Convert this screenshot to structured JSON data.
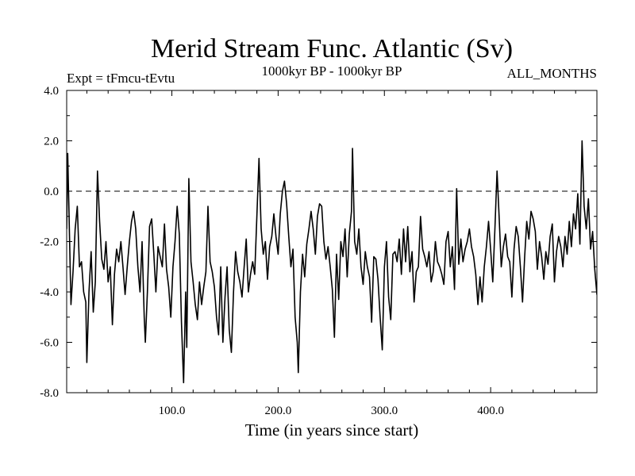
{
  "chart_data": {
    "type": "line",
    "title": "Merid Stream Func. Atlantic (Sv)",
    "subtitle_left": "Expt = tFmcu-tEvtu",
    "subtitle_center": "1000kyr BP - 1000kyr BP",
    "subtitle_right": "ALL_MONTHS",
    "xlabel": "Time (in years since start)",
    "ylabel": "",
    "xlim": [
      1,
      500
    ],
    "ylim": [
      -8.0,
      4.0
    ],
    "x_ticks": [
      100.0,
      200.0,
      300.0,
      400.0
    ],
    "x_tick_labels": [
      "100.0",
      "200.0",
      "300.0",
      "400.0"
    ],
    "y_ticks": [
      4.0,
      2.0,
      0.0,
      -2.0,
      -4.0,
      -6.0,
      -8.0
    ],
    "y_tick_labels": [
      "4.0",
      "2.0",
      "0.0",
      "-2.0",
      "-4.0",
      "-6.0",
      "-8.0"
    ],
    "reference_line": 0.0,
    "series": [
      {
        "name": "Atlantic MSF anomaly",
        "color": "#000000",
        "key_points": [
          [
            1,
            -1.5
          ],
          [
            2,
            1.5
          ],
          [
            3,
            -0.5
          ],
          [
            5,
            -4.5
          ],
          [
            7,
            -3.2
          ],
          [
            9,
            -1.5
          ],
          [
            11,
            -0.6
          ],
          [
            13,
            -3.0
          ],
          [
            15,
            -2.8
          ],
          [
            17,
            -4.0
          ],
          [
            19,
            -4.4
          ],
          [
            20,
            -6.8
          ],
          [
            22,
            -4.0
          ],
          [
            24,
            -2.4
          ],
          [
            26,
            -4.8
          ],
          [
            28,
            -3.6
          ],
          [
            30,
            0.8
          ],
          [
            32,
            -1.2
          ],
          [
            34,
            -2.7
          ],
          [
            36,
            -3.1
          ],
          [
            38,
            -2.0
          ],
          [
            40,
            -3.6
          ],
          [
            42,
            -3.0
          ],
          [
            44,
            -5.3
          ],
          [
            46,
            -3.3
          ],
          [
            48,
            -2.3
          ],
          [
            50,
            -2.8
          ],
          [
            52,
            -2.0
          ],
          [
            54,
            -3.0
          ],
          [
            56,
            -4.1
          ],
          [
            58,
            -3.0
          ],
          [
            60,
            -2.0
          ],
          [
            62,
            -1.2
          ],
          [
            64,
            -0.8
          ],
          [
            66,
            -1.5
          ],
          [
            68,
            -3.0
          ],
          [
            70,
            -4.0
          ],
          [
            72,
            -2.0
          ],
          [
            74,
            -5.0
          ],
          [
            75,
            -6.0
          ],
          [
            77,
            -4.0
          ],
          [
            79,
            -1.4
          ],
          [
            81,
            -1.1
          ],
          [
            83,
            -2.5
          ],
          [
            85,
            -4.0
          ],
          [
            87,
            -2.2
          ],
          [
            89,
            -2.6
          ],
          [
            91,
            -3.0
          ],
          [
            93,
            -1.3
          ],
          [
            95,
            -3.1
          ],
          [
            97,
            -3.8
          ],
          [
            99,
            -5.0
          ],
          [
            101,
            -3.0
          ],
          [
            103,
            -2.0
          ],
          [
            105,
            -0.6
          ],
          [
            107,
            -1.7
          ],
          [
            109,
            -5.2
          ],
          [
            111,
            -7.6
          ],
          [
            113,
            -4.0
          ],
          [
            114,
            -6.2
          ],
          [
            116,
            0.5
          ],
          [
            118,
            -2.8
          ],
          [
            120,
            -3.6
          ],
          [
            122,
            -4.5
          ],
          [
            124,
            -5.1
          ],
          [
            126,
            -3.6
          ],
          [
            128,
            -4.5
          ],
          [
            130,
            -3.8
          ],
          [
            132,
            -3.2
          ],
          [
            134,
            -0.6
          ],
          [
            136,
            -2.8
          ],
          [
            138,
            -3.2
          ],
          [
            140,
            -3.8
          ],
          [
            142,
            -5.0
          ],
          [
            144,
            -5.7
          ],
          [
            146,
            -3.0
          ],
          [
            148,
            -6.0
          ],
          [
            150,
            -4.2
          ],
          [
            152,
            -3.0
          ],
          [
            154,
            -5.5
          ],
          [
            156,
            -6.4
          ],
          [
            158,
            -4.0
          ],
          [
            160,
            -2.4
          ],
          [
            162,
            -3.2
          ],
          [
            164,
            -3.6
          ],
          [
            166,
            -4.2
          ],
          [
            168,
            -3.0
          ],
          [
            170,
            -1.9
          ],
          [
            172,
            -4.0
          ],
          [
            174,
            -3.3
          ],
          [
            176,
            -2.8
          ],
          [
            178,
            -3.3
          ],
          [
            180,
            -1.0
          ],
          [
            182,
            1.3
          ],
          [
            184,
            -1.5
          ],
          [
            186,
            -2.5
          ],
          [
            188,
            -2.0
          ],
          [
            190,
            -3.5
          ],
          [
            192,
            -2.2
          ],
          [
            194,
            -1.8
          ],
          [
            196,
            -0.9
          ],
          [
            198,
            -1.8
          ],
          [
            200,
            -2.5
          ],
          [
            202,
            -0.9
          ],
          [
            204,
            0.0
          ],
          [
            206,
            0.4
          ],
          [
            208,
            -0.5
          ],
          [
            210,
            -1.8
          ],
          [
            212,
            -3.0
          ],
          [
            214,
            -2.3
          ],
          [
            216,
            -5.0
          ],
          [
            218,
            -6.0
          ],
          [
            219,
            -7.2
          ],
          [
            221,
            -4.0
          ],
          [
            223,
            -2.5
          ],
          [
            225,
            -3.4
          ],
          [
            227,
            -2.1
          ],
          [
            229,
            -1.5
          ],
          [
            231,
            -0.8
          ],
          [
            233,
            -1.5
          ],
          [
            235,
            -2.5
          ],
          [
            237,
            -1.0
          ],
          [
            239,
            -0.5
          ],
          [
            241,
            -0.6
          ],
          [
            243,
            -2.0
          ],
          [
            245,
            -2.7
          ],
          [
            247,
            -2.2
          ],
          [
            249,
            -3.0
          ],
          [
            251,
            -3.9
          ],
          [
            253,
            -5.8
          ],
          [
            255,
            -2.5
          ],
          [
            257,
            -4.3
          ],
          [
            259,
            -2.0
          ],
          [
            261,
            -2.6
          ],
          [
            263,
            -1.5
          ],
          [
            265,
            -3.4
          ],
          [
            267,
            -1.7
          ],
          [
            269,
            -0.8
          ],
          [
            270,
            1.7
          ],
          [
            272,
            -2.0
          ],
          [
            274,
            -2.5
          ],
          [
            276,
            -1.5
          ],
          [
            278,
            -3.0
          ],
          [
            280,
            -3.7
          ],
          [
            282,
            -2.4
          ],
          [
            284,
            -3.0
          ],
          [
            286,
            -3.4
          ],
          [
            288,
            -5.2
          ],
          [
            290,
            -2.6
          ],
          [
            292,
            -2.7
          ],
          [
            294,
            -3.5
          ],
          [
            296,
            -5.0
          ],
          [
            298,
            -6.3
          ],
          [
            300,
            -3.0
          ],
          [
            302,
            -2.0
          ],
          [
            304,
            -4.2
          ],
          [
            306,
            -5.1
          ],
          [
            308,
            -2.5
          ],
          [
            310,
            -2.4
          ],
          [
            312,
            -2.8
          ],
          [
            314,
            -1.9
          ],
          [
            316,
            -3.3
          ],
          [
            318,
            -1.5
          ],
          [
            320,
            -2.8
          ],
          [
            322,
            -1.4
          ],
          [
            324,
            -3.2
          ],
          [
            326,
            -2.4
          ],
          [
            328,
            -4.4
          ],
          [
            330,
            -3.2
          ],
          [
            332,
            -3.0
          ],
          [
            334,
            -1.0
          ],
          [
            336,
            -2.3
          ],
          [
            338,
            -2.6
          ],
          [
            340,
            -3.0
          ],
          [
            342,
            -2.4
          ],
          [
            344,
            -3.6
          ],
          [
            346,
            -3.2
          ],
          [
            348,
            -2.0
          ],
          [
            350,
            -2.8
          ],
          [
            352,
            -3.0
          ],
          [
            354,
            -3.3
          ],
          [
            356,
            -3.7
          ],
          [
            358,
            -2.0
          ],
          [
            360,
            -1.6
          ],
          [
            362,
            -3.0
          ],
          [
            364,
            -2.2
          ],
          [
            366,
            -3.9
          ],
          [
            368,
            0.1
          ],
          [
            370,
            -2.9
          ],
          [
            372,
            -1.9
          ],
          [
            374,
            -2.8
          ],
          [
            376,
            -2.3
          ],
          [
            378,
            -2.0
          ],
          [
            380,
            -1.5
          ],
          [
            382,
            -2.2
          ],
          [
            384,
            -2.6
          ],
          [
            386,
            -3.3
          ],
          [
            388,
            -4.5
          ],
          [
            390,
            -3.4
          ],
          [
            392,
            -4.4
          ],
          [
            394,
            -3.0
          ],
          [
            396,
            -2.2
          ],
          [
            398,
            -1.2
          ],
          [
            400,
            -2.3
          ],
          [
            402,
            -3.6
          ],
          [
            404,
            -1.5
          ],
          [
            406,
            0.8
          ],
          [
            408,
            -1.0
          ],
          [
            410,
            -3.0
          ],
          [
            412,
            -2.2
          ],
          [
            414,
            -1.7
          ],
          [
            416,
            -2.6
          ],
          [
            418,
            -2.8
          ],
          [
            420,
            -4.2
          ],
          [
            422,
            -2.3
          ],
          [
            424,
            -1.4
          ],
          [
            426,
            -1.8
          ],
          [
            428,
            -3.0
          ],
          [
            430,
            -4.4
          ],
          [
            432,
            -2.6
          ],
          [
            434,
            -1.2
          ],
          [
            436,
            -1.9
          ],
          [
            438,
            -0.8
          ],
          [
            440,
            -1.1
          ],
          [
            442,
            -1.6
          ],
          [
            444,
            -3.1
          ],
          [
            446,
            -2.0
          ],
          [
            448,
            -2.6
          ],
          [
            450,
            -3.5
          ],
          [
            452,
            -2.4
          ],
          [
            454,
            -2.9
          ],
          [
            456,
            -1.8
          ],
          [
            458,
            -1.3
          ],
          [
            460,
            -3.6
          ],
          [
            462,
            -2.4
          ],
          [
            464,
            -1.8
          ],
          [
            466,
            -2.2
          ],
          [
            468,
            -3.0
          ],
          [
            470,
            -1.8
          ],
          [
            472,
            -2.5
          ],
          [
            474,
            -1.2
          ],
          [
            476,
            -2.2
          ],
          [
            478,
            -0.9
          ],
          [
            480,
            -1.5
          ],
          [
            482,
            -0.1
          ],
          [
            484,
            -2.1
          ],
          [
            486,
            2.0
          ],
          [
            488,
            -0.6
          ],
          [
            490,
            -1.5
          ],
          [
            492,
            -0.3
          ],
          [
            494,
            -2.3
          ],
          [
            496,
            -1.6
          ],
          [
            498,
            -3.1
          ],
          [
            500,
            -4.1
          ],
          [
            502,
            -1.5
          ],
          [
            504,
            -2.8
          ]
        ]
      }
    ]
  }
}
